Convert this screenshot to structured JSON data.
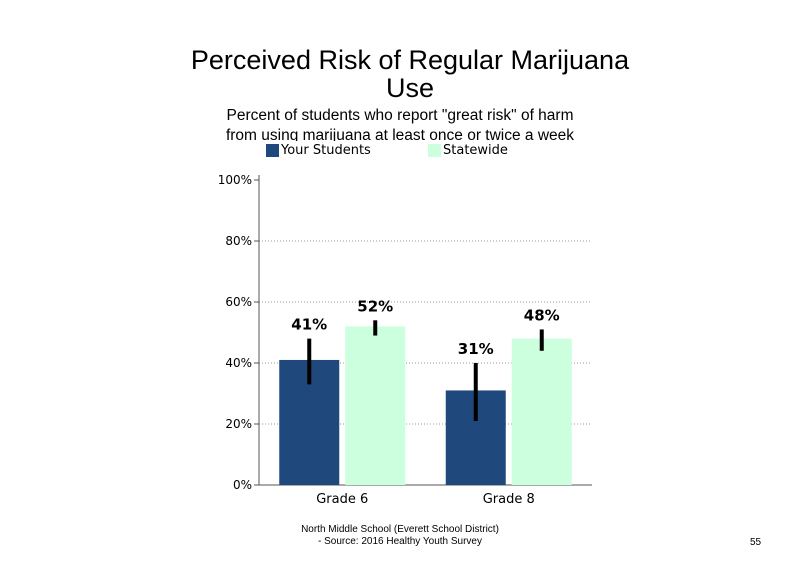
{
  "slide": {
    "title_line1": "Perceived Risk of Regular Marijuana",
    "title_line2": "Use",
    "subtitle_line1": "Percent of students who report \"great risk\" of harm",
    "subtitle_line2": "from using marijuana at least once or twice a week",
    "footer_line1": "North Middle School (Everett School District)",
    "footer_line2": "- Source: 2016 Healthy Youth Survey",
    "page_number": "55"
  },
  "chart_data": {
    "type": "bar",
    "categories": [
      "Grade 6",
      "Grade 8"
    ],
    "series": [
      {
        "name": "Your Students",
        "color": "#1f497d",
        "values": [
          41,
          31
        ],
        "labels": [
          "41%",
          "31%"
        ],
        "error_low": [
          33,
          21
        ],
        "error_high": [
          48,
          40
        ]
      },
      {
        "name": "Statewide",
        "color": "#ccffdd",
        "values": [
          52,
          48
        ],
        "labels": [
          "52%",
          "48%"
        ],
        "error_low": [
          49,
          44
        ],
        "error_high": [
          54,
          51
        ]
      }
    ],
    "yticks": [
      0,
      20,
      40,
      60,
      80,
      100
    ],
    "ytick_labels": [
      "0%",
      "20%",
      "40%",
      "60%",
      "80%",
      "100%"
    ],
    "ylim": [
      0,
      100
    ],
    "grid": "horizontal dotted",
    "legend_position": "top"
  }
}
